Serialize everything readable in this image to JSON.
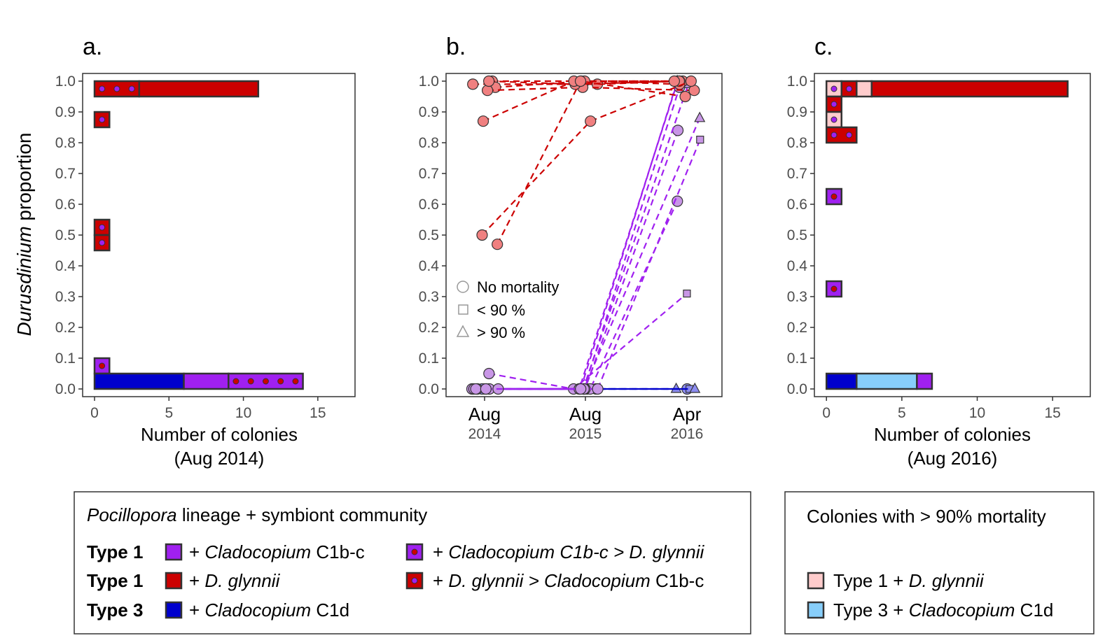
{
  "y_axis_title": {
    "italic": "Durusdinium",
    "rest": "proportion"
  },
  "y_ticks": [
    "0.0",
    "0.1",
    "0.2",
    "0.3",
    "0.4",
    "0.5",
    "0.6",
    "0.7",
    "0.8",
    "0.9",
    "1.0"
  ],
  "colors": {
    "type1_cladocopium": "#a020f0",
    "type1_dglynnii": "#cc0000",
    "type3_c1d": "#0000cd",
    "mort_type1": "#ffcccc",
    "mort_type3": "#87cefa",
    "red_line": "#cc0000",
    "purple_line": "#a020f0",
    "blue_line": "#0000cd",
    "red_point": "#f08080",
    "purple_point": "#c896e6",
    "blue_point": "#8c8cf0"
  },
  "chart_data": [
    {
      "panel": "a.",
      "type": "bar",
      "orientation": "horizontal-stacked",
      "xlabel": "Number of colonies",
      "xlabel_sub": "(Aug 2014)",
      "x_ticks": [
        "0",
        "5",
        "10",
        "15"
      ],
      "xlim": [
        -0.8,
        17.5
      ],
      "ylim": [
        -0.025,
        1.025
      ],
      "bars": [
        {
          "y": 0.975,
          "segments": [
            {
              "group": "dglynnii_gt_clado",
              "count": 3
            },
            {
              "group": "dglynnii",
              "count": 8
            }
          ]
        },
        {
          "y": 0.875,
          "segments": [
            {
              "group": "dglynnii_gt_clado",
              "count": 1
            }
          ]
        },
        {
          "y": 0.525,
          "segments": [
            {
              "group": "dglynnii_gt_clado",
              "count": 1
            }
          ]
        },
        {
          "y": 0.475,
          "segments": [
            {
              "group": "dglynnii_gt_clado",
              "count": 1
            }
          ]
        },
        {
          "y": 0.075,
          "segments": [
            {
              "group": "clado_gt_dglynnii",
              "count": 1
            }
          ]
        },
        {
          "y": 0.025,
          "segments": [
            {
              "group": "type3_c1d",
              "count": 6
            },
            {
              "group": "clado",
              "count": 3
            },
            {
              "group": "clado_gt_dglynnii",
              "count": 5
            }
          ]
        }
      ]
    },
    {
      "panel": "b.",
      "type": "line",
      "x_categories": [
        {
          "month": "Aug",
          "year": "2014"
        },
        {
          "month": "Aug",
          "year": "2015"
        },
        {
          "month": "Apr",
          "year": "2016"
        }
      ],
      "ylim": [
        -0.025,
        1.025
      ],
      "shape_legend": [
        {
          "shape": "circle",
          "label": "No mortality"
        },
        {
          "shape": "square",
          "label": "< 90 %"
        },
        {
          "shape": "triangle",
          "label": "> 90 %"
        }
      ],
      "series": [
        {
          "group": "red",
          "values": [
            1.0,
            1.0,
            1.0
          ],
          "end_shape": "circle"
        },
        {
          "group": "red",
          "values": [
            0.99,
            0.99,
            1.0
          ],
          "end_shape": "circle"
        },
        {
          "group": "red",
          "values": [
            0.98,
            1.0,
            0.99
          ],
          "end_shape": "circle"
        },
        {
          "group": "red",
          "values": [
            0.97,
            0.98,
            0.97
          ],
          "end_shape": "circle"
        },
        {
          "group": "red",
          "values": [
            1.0,
            0.99,
            1.0
          ],
          "end_shape": "circle"
        },
        {
          "group": "red",
          "values": [
            0.87,
            1.0,
            1.0
          ],
          "end_shape": "circle"
        },
        {
          "group": "red",
          "values": [
            0.5,
            0.87,
            1.0
          ],
          "end_shape": "circle"
        },
        {
          "group": "red",
          "values": [
            0.47,
            1.0,
            0.95
          ],
          "end_shape": "circle"
        },
        {
          "group": "purple",
          "values": [
            0.05,
            0.0,
            0.31
          ],
          "end_shape": "square"
        },
        {
          "group": "purple",
          "values": [
            0.0,
            0.0,
            0.61
          ],
          "end_shape": "circle"
        },
        {
          "group": "purple",
          "values": [
            0.0,
            0.0,
            0.84
          ],
          "end_shape": "circle"
        },
        {
          "group": "purple",
          "values": [
            0.0,
            0.0,
            0.81
          ],
          "end_shape": "square"
        },
        {
          "group": "purple",
          "values": [
            0.0,
            0.0,
            0.88
          ],
          "end_shape": "triangle"
        },
        {
          "group": "purple",
          "values": [
            0.0,
            0.0,
            0.99
          ],
          "end_shape": "triangle"
        },
        {
          "group": "purple",
          "values": [
            0.0,
            0.0,
            1.0
          ],
          "end_shape": "circle"
        },
        {
          "group": "purple",
          "values": [
            0.0,
            0.0,
            0.98
          ],
          "end_shape": "circle"
        },
        {
          "group": "purple",
          "values": [
            0.0,
            0.0,
            1.0
          ],
          "end_shape": "triangle"
        },
        {
          "group": "blue",
          "values": [
            0.0,
            0.0,
            0.0
          ],
          "end_shape": "triangle"
        },
        {
          "group": "blue",
          "values": [
            0.0,
            0.0,
            0.0
          ],
          "end_shape": "circle"
        },
        {
          "group": "blue",
          "values": [
            0.0,
            0.0,
            0.0
          ],
          "end_shape": "square"
        },
        {
          "group": "blue",
          "values": [
            0.0,
            0.0,
            0.0
          ],
          "end_shape": "triangle"
        }
      ]
    },
    {
      "panel": "c.",
      "type": "bar",
      "orientation": "horizontal-stacked",
      "xlabel": "Number of colonies",
      "xlabel_sub": "(Aug 2016)",
      "x_ticks": [
        "0",
        "5",
        "10",
        "15"
      ],
      "xlim": [
        -0.8,
        17.5
      ],
      "ylim": [
        -0.025,
        1.025
      ],
      "bars": [
        {
          "y": 0.975,
          "segments": [
            {
              "group": "mort_clado_gt",
              "count": 1
            },
            {
              "group": "dglynnii_gt_clado",
              "count": 1
            },
            {
              "group": "mort_type1",
              "count": 1
            },
            {
              "group": "dglynnii",
              "count": 13
            }
          ]
        },
        {
          "y": 0.925,
          "segments": [
            {
              "group": "dglynnii_gt_clado",
              "count": 1
            }
          ]
        },
        {
          "y": 0.875,
          "segments": [
            {
              "group": "mort_clado_gt",
              "count": 1
            }
          ]
        },
        {
          "y": 0.825,
          "segments": [
            {
              "group": "dglynnii_gt_clado",
              "count": 2
            }
          ]
        },
        {
          "y": 0.625,
          "segments": [
            {
              "group": "clado_gt_dglynnii",
              "count": 1
            }
          ]
        },
        {
          "y": 0.325,
          "segments": [
            {
              "group": "clado_gt_dglynnii",
              "count": 1
            }
          ]
        },
        {
          "y": 0.025,
          "segments": [
            {
              "group": "type3_c1d",
              "count": 2
            },
            {
              "group": "mort_type3",
              "count": 4
            },
            {
              "group": "clado",
              "count": 1
            }
          ]
        }
      ]
    }
  ],
  "legend_main": {
    "title_italic": "Pocillopora",
    "title_rest": " lineage + symbiont community",
    "rows": [
      {
        "type": "Type 1",
        "plus": "+ ",
        "ital": "Cladocopium",
        "rest": " C1b-c",
        "swatch": "clado"
      },
      {
        "type": "Type 1",
        "plus": "+ ",
        "ital": "D. glynnii",
        "rest": "",
        "swatch": "dglynnii"
      },
      {
        "type": "Type 3",
        "plus": "+ ",
        "ital": "Cladocopium",
        "rest": " C1d",
        "swatch": "type3_c1d"
      }
    ],
    "rows_right": [
      {
        "plus": "+ ",
        "ital": "Cladocopium C1b-c > D. glynnii",
        "rest": "",
        "swatch": "clado_gt_dglynnii"
      },
      {
        "plus": "+ ",
        "ital": "D. glynnii > Cladocopium",
        "rest": " C1b-c",
        "swatch": "dglynnii_gt_clado"
      }
    ]
  },
  "legend_mortality": {
    "title": "Colonies with > 90% mortality",
    "rows": [
      {
        "pre": "Type 1 + ",
        "ital": "D. glynnii",
        "rest": "",
        "swatch": "mort_type1"
      },
      {
        "pre": "Type 3 + ",
        "ital": "Cladocopium",
        "rest": " C1d",
        "swatch": "mort_type3"
      }
    ]
  }
}
